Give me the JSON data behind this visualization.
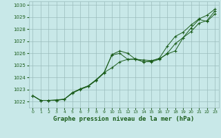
{
  "title": "Graphe pression niveau de la mer (hPa)",
  "bg_color": "#c8e8e8",
  "grid_color": "#9bbcbc",
  "line_color": "#1a5c1a",
  "xlim": [
    -0.5,
    23.5
  ],
  "ylim": [
    1021.5,
    1030.3
  ],
  "yticks": [
    1022,
    1023,
    1024,
    1025,
    1026,
    1027,
    1028,
    1029,
    1030
  ],
  "xticks": [
    0,
    1,
    2,
    3,
    4,
    5,
    6,
    7,
    8,
    9,
    10,
    11,
    12,
    13,
    14,
    15,
    16,
    17,
    18,
    19,
    20,
    21,
    22,
    23
  ],
  "series1_x": [
    0,
    1,
    2,
    3,
    4,
    5,
    6,
    7,
    8,
    9,
    10,
    11,
    12,
    13,
    14,
    15,
    16,
    17,
    18,
    19,
    20,
    21,
    22,
    23
  ],
  "series1_y": [
    1022.5,
    1022.1,
    1022.1,
    1022.1,
    1022.2,
    1022.7,
    1023.0,
    1023.25,
    1023.75,
    1024.35,
    1025.9,
    1026.2,
    1026.0,
    1025.5,
    1025.45,
    1025.4,
    1025.55,
    1025.95,
    1026.2,
    1027.3,
    1028.1,
    1028.8,
    1028.65,
    1029.25
  ],
  "series2_x": [
    0,
    1,
    2,
    3,
    4,
    5,
    6,
    7,
    8,
    9,
    10,
    11,
    12,
    13,
    14,
    15,
    16,
    17,
    18,
    19,
    20,
    21,
    22,
    23
  ],
  "series2_y": [
    1022.5,
    1022.1,
    1022.1,
    1022.15,
    1022.2,
    1022.75,
    1023.05,
    1023.3,
    1023.8,
    1024.4,
    1024.8,
    1025.3,
    1025.5,
    1025.55,
    1025.3,
    1025.3,
    1025.5,
    1026.0,
    1026.8,
    1027.3,
    1027.8,
    1028.5,
    1028.7,
    1029.5
  ],
  "series3_x": [
    0,
    1,
    2,
    3,
    4,
    5,
    6,
    7,
    8,
    9,
    10,
    11,
    12,
    13,
    14,
    15,
    16,
    17,
    18,
    19,
    20,
    21,
    22,
    23
  ],
  "series3_y": [
    1022.5,
    1022.1,
    1022.1,
    1022.1,
    1022.2,
    1022.7,
    1023.05,
    1023.3,
    1023.8,
    1024.4,
    1025.85,
    1026.0,
    1025.5,
    1025.5,
    1025.3,
    1025.35,
    1025.6,
    1026.6,
    1027.4,
    1027.75,
    1028.35,
    1028.85,
    1029.15,
    1029.65
  ]
}
